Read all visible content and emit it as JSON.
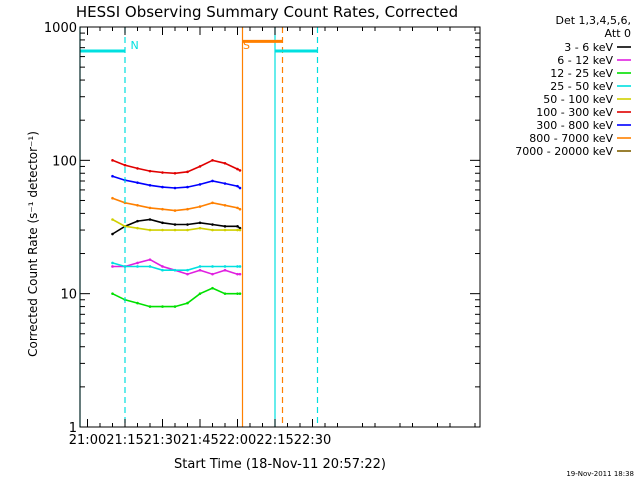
{
  "chart_data": {
    "type": "line",
    "title": "HESSI Observing Summary Count Rates, Corrected",
    "xlabel": "Start Time (18-Nov-11 20:57:22)",
    "ylabel": "Corrected Count Rate (s⁻¹ detector⁻¹)",
    "y_scale": "log",
    "ylim": [
      1,
      1000
    ],
    "xlim_minutes_utc": [
      "20:57",
      "23:37"
    ],
    "x_ticks": [
      "21:00",
      "21:15",
      "21:30",
      "21:45",
      "22:00",
      "22:15",
      "22:30"
    ],
    "y_ticks": [
      "1",
      "10",
      "100",
      "1000"
    ],
    "legend_header": [
      "Det 1,3,4,5,6,",
      "Att 0"
    ],
    "legend_placement": "outside-right",
    "footer_date": "19-Nov-2011 18:38",
    "flag_labels": [
      {
        "text": "N",
        "time": "21:16",
        "color": "#00e0e0"
      },
      {
        "text": "S",
        "time": "22:01",
        "color": "#ff8000"
      }
    ],
    "flag_bars": [
      {
        "name": "night-start",
        "t_start": "20:57",
        "t_end": "21:15",
        "value": 660,
        "color": "#00e0e0"
      },
      {
        "name": "night-end",
        "t_start": "22:15",
        "t_end": "22:32",
        "value": 660,
        "color": "#00e0e0"
      },
      {
        "name": "saa",
        "t_start": "22:02",
        "t_end": "22:18",
        "value": 780,
        "color": "#ff8000"
      }
    ],
    "vertical_markers": [
      {
        "time": "20:57",
        "color": "#00e0e0",
        "style": "solid"
      },
      {
        "time": "21:15",
        "color": "#00e0e0",
        "style": "dashed"
      },
      {
        "time": "22:02",
        "color": "#ff8000",
        "style": "solid"
      },
      {
        "time": "22:15",
        "color": "#00e0e0",
        "style": "solid"
      },
      {
        "time": "22:18",
        "color": "#ff8000",
        "style": "dashed"
      },
      {
        "time": "22:32",
        "color": "#00e0e0",
        "style": "dashed"
      }
    ],
    "times": [
      "21:10",
      "21:15",
      "21:20",
      "21:25",
      "21:30",
      "21:35",
      "21:40",
      "21:45",
      "21:50",
      "21:55",
      "22:00",
      "22:01"
    ],
    "series": [
      {
        "name": "3 - 6 keV",
        "color": "#000000",
        "values": [
          28,
          32,
          35,
          36,
          34,
          33,
          33,
          34,
          33,
          32,
          32,
          31
        ]
      },
      {
        "name": "6 - 12 keV",
        "color": "#e020e0",
        "values": [
          16,
          16,
          17,
          18,
          16,
          15,
          14,
          15,
          14,
          15,
          14,
          14
        ]
      },
      {
        "name": "12 - 25 keV",
        "color": "#00e000",
        "values": [
          10,
          9,
          8.5,
          8,
          8,
          8,
          8.5,
          10,
          11,
          10,
          10,
          10
        ]
      },
      {
        "name": "25 - 50 keV",
        "color": "#00e0e0",
        "values": [
          17,
          16,
          16,
          16,
          15,
          15,
          15,
          16,
          16,
          16,
          16,
          16
        ]
      },
      {
        "name": "50 - 100 keV",
        "color": "#d0d000",
        "values": [
          36,
          32,
          31,
          30,
          30,
          30,
          30,
          31,
          30,
          30,
          30,
          30
        ]
      },
      {
        "name": "100 - 300 keV",
        "color": "#e00000",
        "values": [
          100,
          92,
          87,
          83,
          81,
          80,
          82,
          90,
          100,
          95,
          86,
          84
        ]
      },
      {
        "name": "300 - 800 keV",
        "color": "#0000ff",
        "values": [
          76,
          71,
          68,
          65,
          63,
          62,
          63,
          66,
          70,
          67,
          64,
          62
        ]
      },
      {
        "name": "800 - 7000 keV",
        "color": "#ff8000",
        "values": [
          52,
          48,
          46,
          44,
          43,
          42,
          43,
          45,
          48,
          46,
          44,
          43
        ]
      },
      {
        "name": "7000 - 20000 keV",
        "color": "#806000",
        "values": []
      }
    ]
  }
}
